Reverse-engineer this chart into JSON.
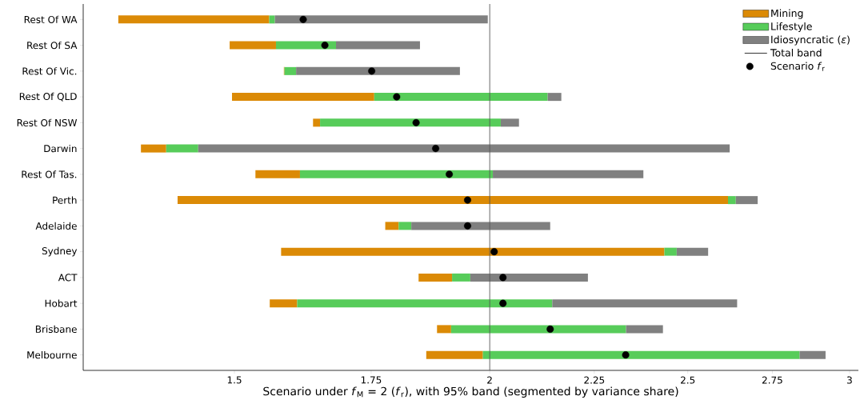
{
  "chart_data": {
    "type": "bar",
    "orientation": "horizontal",
    "log": "x",
    "xlabel": "Scenario under *f*$_{M}$ = 2 (*f*$_{r}$), with 95% band (segmented by variance share)",
    "categories": [
      "Rest Of WA",
      "Rest Of SA",
      "Rest Of Vic.",
      "Rest Of QLD",
      "Rest Of NSW",
      "Darwin",
      "Rest Of Tas.",
      "Perth",
      "Adelaide",
      "Sydney",
      "ACT",
      "Hobart",
      "Brisbane",
      "Melbourne"
    ],
    "series": [
      {
        "name": "Mining",
        "color": "#db8a06",
        "base": [
          1.316,
          1.492,
          1.586,
          1.496,
          1.639,
          1.35,
          1.536,
          1.407,
          1.778,
          1.581,
          1.846,
          1.561,
          1.885,
          1.862
        ],
        "values": [
          0.244,
          0.08,
          0.001,
          0.26,
          0.013,
          0.039,
          0.079,
          1.209,
          0.027,
          0.854,
          0.071,
          0.049,
          0.03,
          0.123
        ]
      },
      {
        "name": "Lifestyle",
        "color": "#57cc5a",
        "base": [
          1.56,
          1.572,
          1.587,
          1.756,
          1.652,
          1.389,
          1.615,
          2.616,
          1.805,
          2.435,
          1.917,
          1.61,
          1.915,
          1.985
        ],
        "values": [
          0.01,
          0.11,
          0.021,
          0.379,
          0.373,
          0.051,
          0.392,
          0.023,
          0.026,
          0.034,
          0.04,
          0.536,
          0.417,
          0.851
        ]
      },
      {
        "name": "Idiosyncratic (*ε*)",
        "color": "#808080",
        "base": [
          1.57,
          1.682,
          1.608,
          2.135,
          2.025,
          1.44,
          2.007,
          2.639,
          1.831,
          2.469,
          1.957,
          2.146,
          2.332,
          2.836
        ],
        "values": [
          0.426,
          0.167,
          0.326,
          0.033,
          0.042,
          1.181,
          0.371,
          0.066,
          0.31,
          0.089,
          0.277,
          0.497,
          0.099,
          0.084
        ]
      },
      {
        "name": "Total band",
        "type": "line",
        "color": "#000000",
        "values": [
          null,
          null,
          null,
          null,
          null,
          null,
          null,
          null,
          null,
          null,
          null,
          null,
          null,
          null
        ]
      },
      {
        "name": "Scenario *f*$_{r}$",
        "type": "scatter",
        "marker": "circle",
        "color": "#000000",
        "values": [
          1.621,
          1.661,
          1.751,
          1.801,
          1.841,
          1.882,
          1.911,
          1.951,
          1.951,
          2.01,
          2.03,
          2.03,
          2.141,
          2.331
        ]
      }
    ],
    "xlim": [
      1.265,
      3.03
    ],
    "xticks": [
      1.5,
      1.75,
      2,
      2.25,
      2.5,
      2.75,
      3
    ],
    "ref_lines": [
      {
        "axis": "x",
        "value": 2,
        "color": "#555555"
      }
    ],
    "legend": "top right"
  }
}
